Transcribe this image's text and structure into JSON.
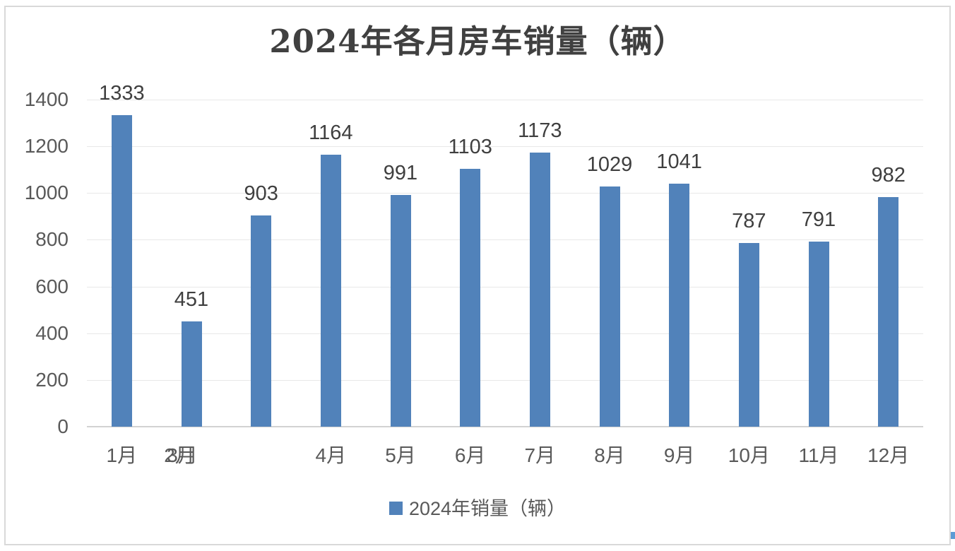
{
  "chart_data": {
    "type": "bar",
    "title": "2024年各月房车销量（辆）",
    "categories": [
      "1月",
      "2月",
      "3月",
      "4月",
      "5月",
      "6月",
      "7月",
      "8月",
      "9月",
      "10月",
      "11月",
      "12月"
    ],
    "series": [
      {
        "name": "2024年销量（辆）",
        "values": [
          1333,
          451,
          903,
          1164,
          991,
          1103,
          1173,
          1029,
          1041,
          787,
          791,
          982
        ]
      }
    ],
    "xlabel": "",
    "ylabel": "",
    "ylim": [
      0,
      1400
    ],
    "yticks": [
      0,
      200,
      400,
      600,
      800,
      1000,
      1200,
      1400
    ],
    "grid": true,
    "legend_position": "bottom",
    "overlapped_x_labels": [
      "2月",
      "3月"
    ],
    "colors": {
      "bar": "#5182BA",
      "gridline": "#E8E8E8",
      "axis_line": "#D2D2D2",
      "tick_text": "#595959",
      "value_label_text": "#3F3F3F",
      "title_text": "#404040",
      "legend_text": "#595959",
      "frame_border": "#D9D9D9",
      "selection_handle": "#5B9BD5"
    }
  }
}
